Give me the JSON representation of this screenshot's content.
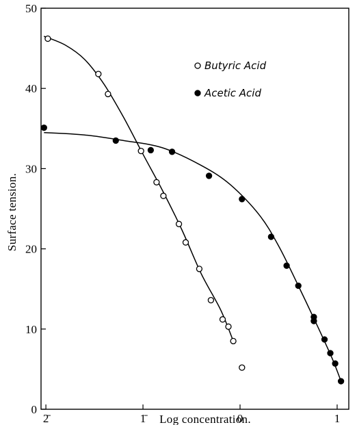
{
  "chart_data": {
    "type": "scatter",
    "title": "",
    "xlabel": "Log concentration.",
    "ylabel": "Surface tension.",
    "xlim": [
      -2.05,
      1.12
    ],
    "ylim": [
      0,
      50
    ],
    "x_ticks": [
      {
        "value": -2,
        "label": "2̄"
      },
      {
        "value": -1,
        "label": "1̄"
      },
      {
        "value": 0,
        "label": "0"
      },
      {
        "value": 1,
        "label": "1"
      }
    ],
    "y_ticks": [
      {
        "value": 0,
        "label": "0"
      },
      {
        "value": 10,
        "label": "10"
      },
      {
        "value": 20,
        "label": "20"
      },
      {
        "value": 30,
        "label": "30"
      },
      {
        "value": 40,
        "label": "40"
      },
      {
        "value": 50,
        "label": "50"
      }
    ],
    "grid": false,
    "legend": {
      "position": "top-right"
    },
    "series": [
      {
        "name": "Butyric Acid",
        "marker": "open-circle",
        "points": [
          [
            -1.98,
            46.2
          ],
          [
            -1.46,
            41.8
          ],
          [
            -1.36,
            39.3
          ],
          [
            -1.02,
            32.2
          ],
          [
            -0.86,
            28.3
          ],
          [
            -0.79,
            26.6
          ],
          [
            -0.63,
            23.1
          ],
          [
            -0.56,
            20.8
          ],
          [
            -0.42,
            17.5
          ],
          [
            -0.3,
            13.6
          ],
          [
            -0.18,
            11.2
          ],
          [
            -0.12,
            10.3
          ],
          [
            -0.07,
            8.5
          ],
          [
            0.02,
            5.2
          ]
        ],
        "curve": [
          [
            -2.02,
            46.5
          ],
          [
            -1.8,
            45.4
          ],
          [
            -1.6,
            43.6
          ],
          [
            -1.4,
            40.5
          ],
          [
            -1.2,
            36.4
          ],
          [
            -1.0,
            31.8
          ],
          [
            -0.8,
            27.3
          ],
          [
            -0.6,
            22.4
          ],
          [
            -0.4,
            16.9
          ],
          [
            -0.2,
            12.4
          ],
          [
            -0.07,
            8.5
          ]
        ]
      },
      {
        "name": "Acetic Acid",
        "marker": "filled-circle",
        "points": [
          [
            -2.02,
            35.1
          ],
          [
            -1.28,
            33.5
          ],
          [
            -0.92,
            32.3
          ],
          [
            -0.7,
            32.1
          ],
          [
            -0.32,
            29.1
          ],
          [
            0.02,
            26.2
          ],
          [
            0.32,
            21.5
          ],
          [
            0.48,
            17.9
          ],
          [
            0.6,
            15.4
          ],
          [
            0.76,
            11.5
          ],
          [
            0.76,
            11.0
          ],
          [
            0.87,
            8.7
          ],
          [
            0.93,
            7.0
          ],
          [
            0.98,
            5.7
          ],
          [
            1.04,
            3.5
          ]
        ],
        "curve": [
          [
            -2.02,
            34.5
          ],
          [
            -1.6,
            34.2
          ],
          [
            -1.2,
            33.5
          ],
          [
            -0.8,
            32.6
          ],
          [
            -0.4,
            30.4
          ],
          [
            -0.1,
            28.0
          ],
          [
            0.2,
            24.2
          ],
          [
            0.4,
            20.3
          ],
          [
            0.6,
            15.4
          ],
          [
            0.8,
            10.3
          ],
          [
            0.95,
            6.3
          ],
          [
            1.04,
            3.5
          ]
        ]
      }
    ]
  }
}
